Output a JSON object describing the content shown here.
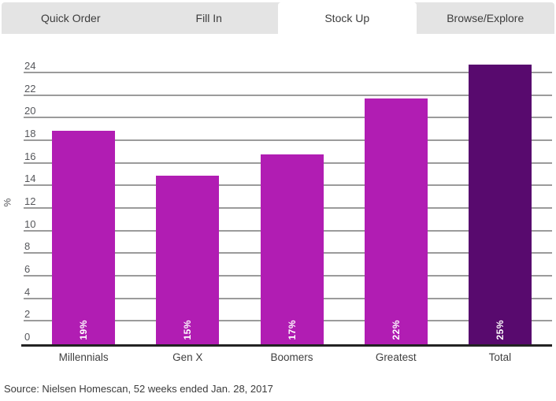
{
  "tabs": {
    "items": [
      {
        "label": "Quick Order",
        "active": false
      },
      {
        "label": "Fill In",
        "active": false
      },
      {
        "label": "Stock Up",
        "active": true
      },
      {
        "label": "Browse/Explore",
        "active": false
      }
    ]
  },
  "chart_data": {
    "type": "bar",
    "categories": [
      "Millennials",
      "Gen X",
      "Boomers",
      "Greatest",
      "Total"
    ],
    "values": [
      19,
      15,
      17,
      22,
      25
    ],
    "bar_labels": [
      "19%",
      "15%",
      "17%",
      "22%",
      "25%"
    ],
    "bar_tops": [
      18.9,
      14.9,
      16.8,
      21.8,
      24.8
    ],
    "bar_colors": [
      "#b11db3",
      "#b11db3",
      "#b11db3",
      "#b11db3",
      "#580a6e"
    ],
    "xlabel": "",
    "ylabel": "%",
    "ylim": [
      0,
      24
    ],
    "ytick_step": 2,
    "yticks": [
      0,
      2,
      4,
      6,
      8,
      10,
      12,
      14,
      16,
      18,
      20,
      22,
      24
    ],
    "grid": true,
    "legend": false
  },
  "colors": {
    "bar_magenta": "#b11db3",
    "bar_dark_purple": "#580a6e",
    "tab_bar_bg": "#e4e4e4",
    "active_tab_bg": "#ffffff",
    "gridline": "#9b9b9b",
    "axis_line": "#232323",
    "tick_text": "#56575b",
    "category_text": "#3f3f3f",
    "tab_text": "#3d3d3d",
    "source_text": "#3b3b3b"
  },
  "footer": {
    "source_note": "Source: Nielsen Homescan, 52 weeks ended Jan. 28, 2017"
  }
}
